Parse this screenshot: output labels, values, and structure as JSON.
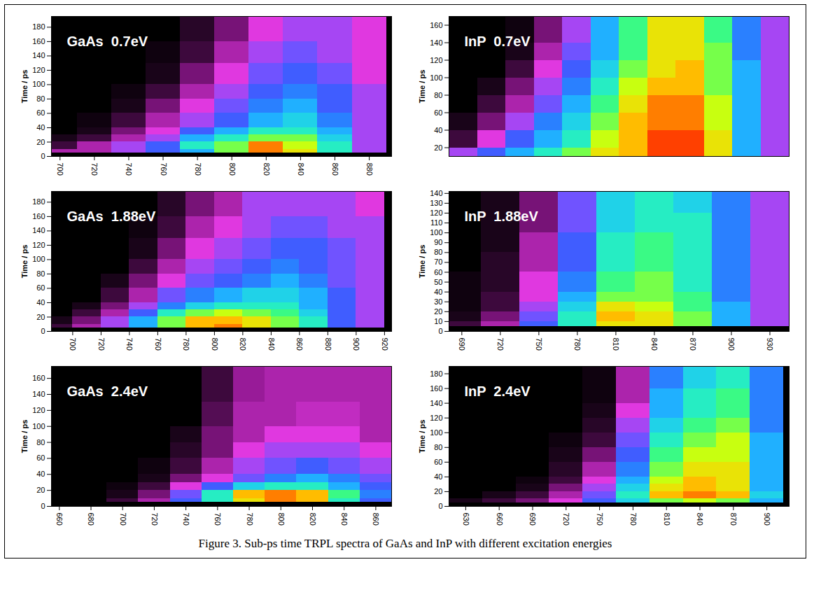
{
  "caption": "Figure 3. Sub-ps time TRPL  spectra of GaAs and InP with different excitation energies",
  "chart_data": [
    {
      "type": "heatmap",
      "title": "GaAs  0.7eV",
      "y_label": "Time / ps",
      "xlim": [
        695,
        893
      ],
      "xticks": [
        700,
        720,
        740,
        760,
        780,
        800,
        820,
        840,
        860,
        880
      ],
      "ylim": [
        0,
        195
      ],
      "yticks": [
        0,
        20,
        40,
        60,
        80,
        100,
        120,
        140,
        160,
        180
      ],
      "intensity_range": [
        0,
        10
      ],
      "wavelength_bins": [
        690,
        710,
        730,
        750,
        770,
        790,
        810,
        830,
        850,
        870,
        890
      ],
      "time_bins": [
        0,
        5,
        10,
        20,
        30,
        40,
        60,
        80,
        100,
        130,
        160,
        195
      ],
      "intensity": [
        [
          0,
          0,
          0,
          0,
          0,
          0,
          0,
          0,
          0,
          0
        ],
        [
          2,
          2,
          3,
          4,
          5,
          7,
          9,
          8,
          6,
          3
        ],
        [
          1,
          2,
          3,
          4,
          6,
          7,
          9,
          7.5,
          6,
          3
        ],
        [
          0.5,
          1,
          2,
          3,
          5,
          6,
          7,
          7,
          5.5,
          3
        ],
        [
          0,
          0.5,
          1.5,
          2.5,
          4,
          5,
          6,
          6,
          5,
          3
        ],
        [
          0,
          0.3,
          1,
          2,
          3,
          4,
          5,
          5.5,
          4.5,
          3
        ],
        [
          0,
          0,
          0.5,
          1.5,
          2.5,
          3.5,
          4.5,
          5,
          4,
          3
        ],
        [
          0,
          0,
          0.3,
          1,
          2,
          3,
          4,
          4.5,
          4,
          3
        ],
        [
          0,
          0,
          0,
          0.5,
          1.5,
          2.5,
          3.5,
          4,
          3.5,
          2.5
        ],
        [
          0,
          0,
          0,
          0.3,
          1,
          2,
          3,
          3.5,
          3,
          2.5
        ],
        [
          0,
          0,
          0,
          0,
          0.8,
          1.5,
          2.5,
          3,
          3,
          2.5
        ]
      ]
    },
    {
      "type": "heatmap",
      "title": "InP  0.7eV",
      "y_label": "Time / ps",
      "tick_labels": "y",
      "xlim": [
        690,
        930
      ],
      "ylim": [
        10,
        170
      ],
      "yticks": [
        20,
        40,
        60,
        80,
        100,
        120,
        140,
        160
      ],
      "intensity_range": [
        0,
        10
      ],
      "wavelength_bins": [
        690,
        710,
        730,
        750,
        770,
        790,
        810,
        830,
        850,
        870,
        890,
        910,
        930
      ],
      "time_bins": [
        10,
        20,
        40,
        60,
        80,
        100,
        120,
        140,
        170
      ],
      "intensity": [
        [
          3,
          4,
          5,
          6,
          7,
          8,
          8.5,
          9.5,
          9.5,
          8,
          5,
          3
        ],
        [
          1,
          2.5,
          4,
          5,
          6,
          7.5,
          8.5,
          9.5,
          9.5,
          8,
          5,
          3
        ],
        [
          0.5,
          1.5,
          3,
          4.5,
          5.5,
          7,
          8.5,
          9,
          9,
          7.5,
          5,
          3
        ],
        [
          0,
          1,
          2,
          3.5,
          5,
          6.5,
          8,
          9,
          9,
          7.5,
          5,
          3
        ],
        [
          0,
          0.5,
          1.5,
          3,
          4.5,
          6,
          7.5,
          8.5,
          8.5,
          7,
          5,
          3
        ],
        [
          0,
          0,
          1,
          2.5,
          4,
          5.5,
          7,
          8,
          8.5,
          7,
          5,
          3
        ],
        [
          0,
          0,
          0.5,
          2,
          3.5,
          5,
          6.5,
          8,
          8,
          7,
          4.5,
          3
        ],
        [
          0,
          0,
          0.3,
          1.5,
          3,
          5,
          6.5,
          8,
          8,
          6.5,
          4.5,
          3
        ]
      ]
    },
    {
      "type": "heatmap",
      "title": "GaAs  1.88eV",
      "y_label": "Time / ps",
      "xlim": [
        685,
        925
      ],
      "xticks": [
        700,
        720,
        740,
        760,
        780,
        800,
        820,
        840,
        860,
        880,
        900,
        920
      ],
      "ylim": [
        0,
        195
      ],
      "yticks": [
        0,
        20,
        40,
        60,
        80,
        100,
        120,
        140,
        160,
        180
      ],
      "intensity_range": [
        0,
        10
      ],
      "wavelength_bins": [
        680,
        700,
        720,
        740,
        760,
        780,
        800,
        820,
        840,
        860,
        880,
        900,
        920
      ],
      "time_bins": [
        0,
        5,
        10,
        20,
        30,
        40,
        60,
        80,
        100,
        130,
        160,
        195
      ],
      "intensity": [
        [
          0,
          0,
          0,
          0,
          0,
          0,
          0,
          0,
          0,
          0,
          0,
          0
        ],
        [
          1,
          2,
          3,
          5,
          7,
          8.5,
          9,
          8,
          7,
          6,
          4,
          3
        ],
        [
          0.5,
          1.5,
          3,
          5,
          7,
          8.5,
          8.5,
          8,
          7,
          6,
          4,
          3
        ],
        [
          0,
          1,
          2,
          4,
          6,
          7,
          7.5,
          7,
          6.5,
          5.5,
          4,
          3
        ],
        [
          0,
          0.5,
          1.5,
          3,
          4.5,
          5.5,
          6,
          6,
          6,
          5,
          4,
          3
        ],
        [
          0,
          0,
          1,
          2,
          3.5,
          4.5,
          5,
          5.5,
          5.5,
          5,
          4,
          3
        ],
        [
          0,
          0,
          0.5,
          1.5,
          2.5,
          3.5,
          4,
          4.5,
          5,
          4.5,
          3.5,
          3
        ],
        [
          0,
          0,
          0,
          1,
          2,
          3,
          3.5,
          4,
          4.5,
          4,
          3.5,
          3
        ],
        [
          0,
          0,
          0,
          0.5,
          1.5,
          2.5,
          3,
          3.5,
          4,
          4,
          3.5,
          3
        ],
        [
          0,
          0,
          0,
          0.3,
          1,
          2,
          2.5,
          3,
          3.5,
          3.5,
          3,
          3
        ],
        [
          0,
          0,
          0,
          0,
          0.8,
          1.5,
          2,
          3,
          3,
          3,
          3,
          2.5
        ]
      ]
    },
    {
      "type": "heatmap",
      "title": "InP  1.88eV",
      "y_label": "Time / ps",
      "xlim": [
        680,
        945
      ],
      "xticks": [
        690,
        720,
        750,
        780,
        810,
        840,
        870,
        900,
        930
      ],
      "ylim": [
        0,
        142
      ],
      "yticks": [
        0,
        10,
        20,
        30,
        40,
        50,
        60,
        70,
        80,
        90,
        100,
        110,
        120,
        130,
        140
      ],
      "intensity_range": [
        0,
        10
      ],
      "wavelength_bins": [
        675,
        705,
        735,
        765,
        795,
        825,
        855,
        885,
        915,
        945
      ],
      "time_bins": [
        0,
        5,
        10,
        20,
        30,
        40,
        60,
        80,
        100,
        120,
        142
      ],
      "intensity": [
        [
          0,
          0,
          0,
          0,
          0,
          0,
          0,
          0,
          0
        ],
        [
          1,
          2,
          4,
          6,
          8,
          8,
          7,
          5,
          3
        ],
        [
          0.5,
          1.5,
          3.5,
          6,
          8.5,
          8,
          7,
          5,
          3
        ],
        [
          0.3,
          1,
          3,
          5.5,
          8,
          7.5,
          6.5,
          5,
          3
        ],
        [
          0.3,
          1,
          2.5,
          5,
          7,
          7,
          6.5,
          4.5,
          3
        ],
        [
          0.3,
          0.8,
          2.5,
          4.5,
          6.5,
          7,
          6,
          4.5,
          3
        ],
        [
          0,
          0.8,
          2,
          4,
          6,
          6.5,
          6,
          4.5,
          3
        ],
        [
          0,
          0.5,
          2,
          4,
          6,
          6.5,
          6,
          4.5,
          3
        ],
        [
          0,
          0.5,
          1.5,
          3.5,
          5.5,
          6,
          6,
          4.5,
          3
        ],
        [
          0,
          0.5,
          1.5,
          3.5,
          5.5,
          6,
          5.5,
          4.5,
          3
        ]
      ]
    },
    {
      "type": "heatmap",
      "title": "GaAs  2.4eV",
      "y_label": "Time / ps",
      "xlim": [
        655,
        870
      ],
      "xticks": [
        660,
        680,
        700,
        720,
        740,
        760,
        780,
        800,
        820,
        840,
        860
      ],
      "ylim": [
        0,
        175
      ],
      "yticks": [
        0,
        20,
        40,
        60,
        80,
        100,
        120,
        140,
        160
      ],
      "intensity_range": [
        0,
        10
      ],
      "wavelength_bins": [
        650,
        670,
        690,
        710,
        730,
        750,
        770,
        790,
        810,
        830,
        850,
        870
      ],
      "time_bins": [
        0,
        5,
        10,
        20,
        30,
        40,
        60,
        80,
        100,
        130,
        175
      ],
      "intensity": [
        [
          0,
          0,
          0,
          0,
          0,
          0,
          0,
          0,
          0,
          0,
          0
        ],
        [
          0,
          0,
          1,
          2,
          4,
          6,
          8,
          9,
          8.5,
          6,
          4
        ],
        [
          0,
          0,
          0.5,
          1.5,
          3.5,
          6,
          8.5,
          9,
          8.5,
          6.5,
          4.5
        ],
        [
          0,
          0,
          0.3,
          1,
          2.5,
          4,
          5.5,
          6,
          6,
          5,
          4
        ],
        [
          0,
          0,
          0,
          0.5,
          1.5,
          2.5,
          3.5,
          4.5,
          5,
          4.5,
          3.5
        ],
        [
          0,
          0,
          0,
          0.3,
          1,
          2,
          3,
          3.5,
          4,
          3.5,
          3
        ],
        [
          0,
          0,
          0,
          0,
          0.8,
          1.5,
          2.5,
          3,
          3,
          3,
          2.5
        ],
        [
          0,
          0,
          0,
          0,
          0.5,
          1.5,
          2,
          2.5,
          2.5,
          2.5,
          2
        ],
        [
          0,
          0,
          0,
          0,
          0,
          1.2,
          2,
          2,
          2.2,
          2.2,
          2
        ],
        [
          0,
          0,
          0,
          0,
          0,
          1,
          1.8,
          2,
          2,
          2,
          2
        ]
      ]
    },
    {
      "type": "heatmap",
      "title": "InP  2.4eV",
      "y_label": "Time / ps",
      "xlim": [
        615,
        920
      ],
      "xticks": [
        630,
        660,
        690,
        720,
        750,
        780,
        810,
        840,
        870,
        900
      ],
      "ylim": [
        0,
        190
      ],
      "yticks": [
        0,
        20,
        40,
        60,
        80,
        100,
        120,
        140,
        160,
        180
      ],
      "intensity_range": [
        0,
        10
      ],
      "wavelength_bins": [
        615,
        645,
        675,
        705,
        735,
        765,
        795,
        825,
        855,
        885,
        915
      ],
      "time_bins": [
        0,
        5,
        10,
        20,
        30,
        40,
        60,
        80,
        100,
        120,
        140,
        160,
        190
      ],
      "intensity": [
        [
          0,
          0,
          0,
          0,
          0,
          0,
          0,
          0,
          0,
          0
        ],
        [
          0.5,
          1,
          1.5,
          2.5,
          4,
          5.5,
          7,
          7.5,
          7,
          5
        ],
        [
          0,
          0.5,
          1,
          2,
          3.5,
          6,
          8.5,
          9,
          8.5,
          5.5
        ],
        [
          0,
          0,
          0.5,
          1.5,
          3,
          5.5,
          8,
          8.5,
          8,
          5
        ],
        [
          0,
          0,
          0.3,
          1,
          2.5,
          5,
          7.5,
          8.5,
          8,
          5
        ],
        [
          0,
          0,
          0,
          0.8,
          2,
          4.5,
          7,
          8,
          8,
          5
        ],
        [
          0,
          0,
          0,
          0.5,
          1.5,
          4,
          6.5,
          7.5,
          7.5,
          5
        ],
        [
          0,
          0,
          0,
          0.3,
          1,
          3.5,
          6,
          7,
          7.5,
          5
        ],
        [
          0,
          0,
          0,
          0,
          0.8,
          3,
          5.5,
          6.5,
          7,
          4.5
        ],
        [
          0,
          0,
          0,
          0,
          0.5,
          2.5,
          5,
          6,
          6.5,
          4.5
        ],
        [
          0,
          0,
          0,
          0,
          0.3,
          2,
          5,
          6,
          6.5,
          4.5
        ],
        [
          0,
          0,
          0,
          0,
          0.3,
          2,
          4.5,
          5.5,
          6,
          4.5
        ]
      ]
    }
  ]
}
